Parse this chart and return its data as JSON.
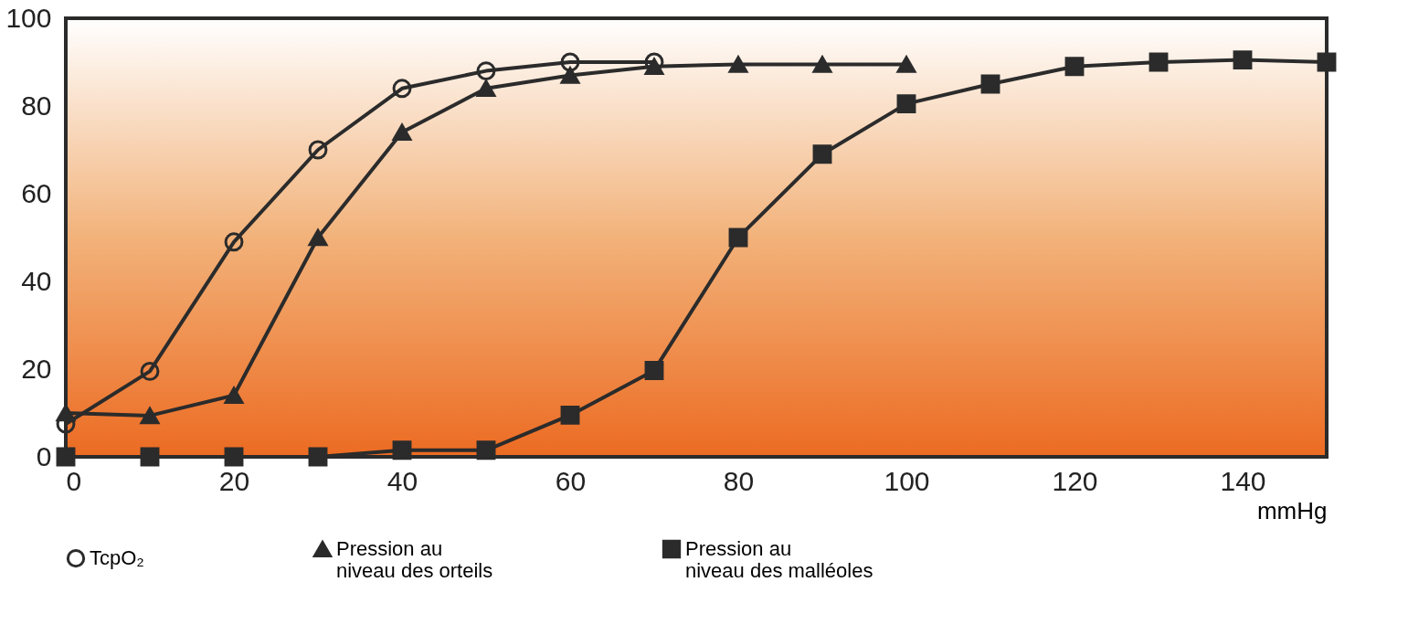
{
  "chart_data": {
    "type": "line",
    "xlabel": "mmHg",
    "x": [
      0,
      10,
      20,
      30,
      40,
      50,
      60,
      70,
      80,
      90,
      100,
      110,
      120,
      130,
      140,
      150
    ],
    "xlim": [
      0,
      150
    ],
    "xticks": [
      0,
      20,
      40,
      60,
      80,
      100,
      120,
      140
    ],
    "ylim": [
      0,
      100
    ],
    "yticks": [
      0,
      20,
      40,
      60,
      80,
      100
    ],
    "legend": "bottom",
    "line_style": "solid",
    "series": [
      {
        "name": "TcpO₂",
        "color": "#2b2b2b",
        "marker": "circle",
        "values": [
          7.5,
          19.5,
          49,
          70,
          84,
          88,
          90,
          90,
          null,
          null,
          null,
          null,
          null,
          null,
          null,
          null
        ]
      },
      {
        "name": "Pression au\nniveau des orteils",
        "color": "#2b2b2b",
        "marker": "triangle",
        "values": [
          10,
          9.4,
          14,
          50,
          74,
          84,
          87,
          89,
          89.5,
          89.5,
          89.5,
          null,
          null,
          null,
          null,
          null
        ]
      },
      {
        "name": "Pression au\nniveau des malléoles",
        "color": "#2b2b2b",
        "marker": "square",
        "values": [
          0,
          0,
          0,
          0,
          1.5,
          1.5,
          9.5,
          19.7,
          50,
          69,
          80.5,
          85,
          89,
          90,
          90.5,
          90
        ]
      }
    ]
  }
}
